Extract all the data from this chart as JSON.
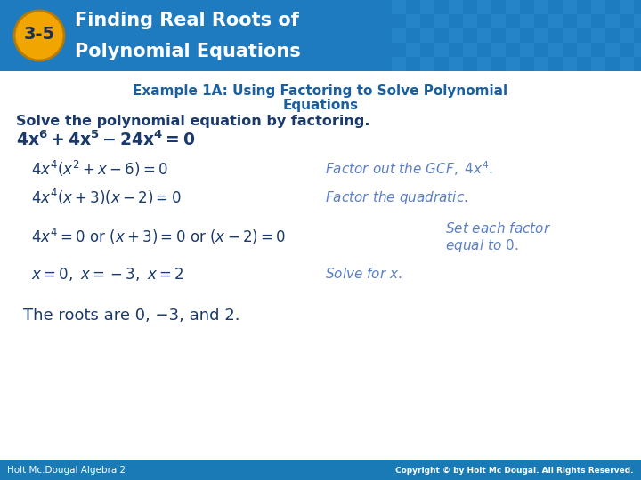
{
  "header_bg_color": "#1e7bbf",
  "header_text_color": "#ffffff",
  "badge_bg_color": "#f0a500",
  "badge_text": "3-5",
  "header_title_line1": "Finding Real Roots of",
  "header_title_line2": "Polynomial Equations",
  "body_bg_color": "#ffffff",
  "footer_bg_color": "#1a7ab5",
  "footer_left": "Holt Mc.Dougal Algebra 2",
  "footer_right": "Copyright © by Holt Mc Dougal. All Rights Reserved.",
  "footer_text_color": "#ffffff",
  "dark_blue": "#1a3a6b",
  "blue_italic": "#5b7fc4",
  "example_title_color": "#1a5fa0",
  "checker_color": "#2e8fce",
  "checker_alpha": 0.45
}
